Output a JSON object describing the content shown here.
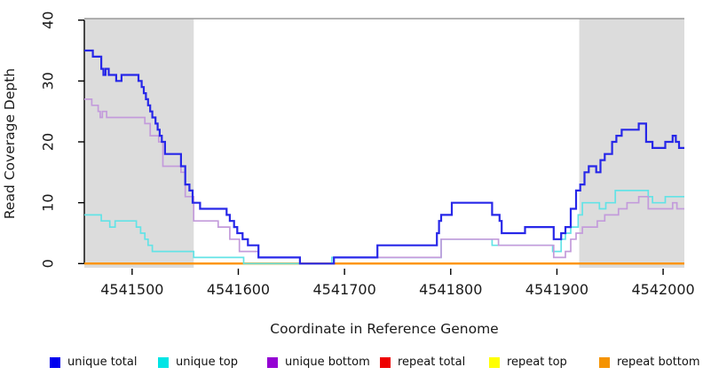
{
  "chart_data": {
    "type": "line",
    "subtype": "step-coverage-plot",
    "title": "",
    "xlabel": "Coordinate in Reference Genome",
    "ylabel": "Read Coverage Depth",
    "xlim": [
      4541455,
      4542020
    ],
    "ylim": [
      0,
      40
    ],
    "x_ticks": [
      4541500,
      4541600,
      4541700,
      4541800,
      4541900,
      4542000
    ],
    "y_ticks": [
      0,
      10,
      20,
      30,
      40
    ],
    "grid": false,
    "legend_position": "bottom",
    "shaded_regions": [
      {
        "name": "left-repeat-region",
        "x0": 4541455,
        "x1": 4541558,
        "color": "#dcdcdc"
      },
      {
        "name": "right-repeat-region",
        "x0": 4541921,
        "x1": 4542020,
        "color": "#dcdcdc"
      }
    ],
    "series": [
      {
        "name": "repeat total",
        "color": "#dd0000",
        "width": 2,
        "points": [
          [
            4541455,
            0
          ]
        ]
      },
      {
        "name": "repeat top",
        "color": "#ffeb00",
        "width": 2,
        "points": [
          [
            4541455,
            0
          ]
        ]
      },
      {
        "name": "repeat bottom",
        "color": "#ff9100",
        "width": 2,
        "points": [
          [
            4541455,
            0
          ]
        ]
      },
      {
        "name": "unique top",
        "color": "#63e3e6",
        "width": 1.7,
        "points": [
          [
            4541455,
            8
          ],
          [
            4541471,
            7
          ],
          [
            4541479,
            6
          ],
          [
            4541484,
            7
          ],
          [
            4541504,
            6
          ],
          [
            4541508,
            5
          ],
          [
            4541512,
            4
          ],
          [
            4541515,
            3
          ],
          [
            4541519,
            2
          ],
          [
            4541558,
            1
          ],
          [
            4541605,
            0
          ],
          [
            4541688,
            1
          ],
          [
            4541791,
            4
          ],
          [
            4541839,
            3
          ],
          [
            4541896,
            2
          ],
          [
            4541904,
            4
          ],
          [
            4541908,
            5
          ],
          [
            4541913,
            6
          ],
          [
            4541920,
            8
          ],
          [
            4541924,
            10
          ],
          [
            4541940,
            9
          ],
          [
            4541946,
            10
          ],
          [
            4541955,
            12
          ],
          [
            4541986,
            11
          ],
          [
            4541990,
            10
          ],
          [
            4542002,
            11
          ]
        ]
      },
      {
        "name": "unique bottom",
        "color": "#c39bdb",
        "width": 1.7,
        "points": [
          [
            4541455,
            27
          ],
          [
            4541462,
            26
          ],
          [
            4541468,
            25
          ],
          [
            4541470,
            24
          ],
          [
            4541472,
            25
          ],
          [
            4541476,
            24
          ],
          [
            4541512,
            23
          ],
          [
            4541517,
            21
          ],
          [
            4541525,
            20
          ],
          [
            4541529,
            16
          ],
          [
            4541546,
            15
          ],
          [
            4541550,
            11
          ],
          [
            4541558,
            7
          ],
          [
            4541581,
            6
          ],
          [
            4541592,
            4
          ],
          [
            4541601,
            2
          ],
          [
            4541619,
            1
          ],
          [
            4541658,
            0
          ],
          [
            4541690,
            1
          ],
          [
            4541791,
            4
          ],
          [
            4541845,
            3
          ],
          [
            4541897,
            1
          ],
          [
            4541908,
            2
          ],
          [
            4541913,
            4
          ],
          [
            4541918,
            5
          ],
          [
            4541924,
            6
          ],
          [
            4541938,
            7
          ],
          [
            4541945,
            8
          ],
          [
            4541958,
            9
          ],
          [
            4541966,
            10
          ],
          [
            4541977,
            11
          ],
          [
            4541986,
            9
          ],
          [
            4542009,
            10
          ],
          [
            4542013,
            9
          ]
        ]
      },
      {
        "name": "unique total",
        "color": "#2727e8",
        "width": 2.2,
        "points": [
          [
            4541455,
            35
          ],
          [
            4541463,
            34
          ],
          [
            4541471,
            32
          ],
          [
            4541473,
            31
          ],
          [
            4541475,
            32
          ],
          [
            4541478,
            31
          ],
          [
            4541485,
            30
          ],
          [
            4541490,
            31
          ],
          [
            4541506,
            30
          ],
          [
            4541509,
            29
          ],
          [
            4541511,
            28
          ],
          [
            4541513,
            27
          ],
          [
            4541515,
            26
          ],
          [
            4541517,
            25
          ],
          [
            4541519,
            24
          ],
          [
            4541522,
            23
          ],
          [
            4541524,
            22
          ],
          [
            4541526,
            21
          ],
          [
            4541528,
            20
          ],
          [
            4541531,
            18
          ],
          [
            4541546,
            16
          ],
          [
            4541550,
            13
          ],
          [
            4541554,
            12
          ],
          [
            4541557,
            10
          ],
          [
            4541564,
            9
          ],
          [
            4541589,
            8
          ],
          [
            4541592,
            7
          ],
          [
            4541596,
            6
          ],
          [
            4541599,
            5
          ],
          [
            4541604,
            4
          ],
          [
            4541609,
            3
          ],
          [
            4541619,
            1
          ],
          [
            4541658,
            0
          ],
          [
            4541690,
            1
          ],
          [
            4541731,
            3
          ],
          [
            4541787,
            5
          ],
          [
            4541789,
            7
          ],
          [
            4541791,
            8
          ],
          [
            4541801,
            10
          ],
          [
            4541839,
            8
          ],
          [
            4541846,
            7
          ],
          [
            4541848,
            5
          ],
          [
            4541870,
            6
          ],
          [
            4541897,
            4
          ],
          [
            4541904,
            5
          ],
          [
            4541908,
            6
          ],
          [
            4541913,
            9
          ],
          [
            4541918,
            12
          ],
          [
            4541922,
            13
          ],
          [
            4541926,
            15
          ],
          [
            4541930,
            16
          ],
          [
            4541937,
            15
          ],
          [
            4541941,
            17
          ],
          [
            4541945,
            18
          ],
          [
            4541952,
            20
          ],
          [
            4541956,
            21
          ],
          [
            4541961,
            22
          ],
          [
            4541977,
            23
          ],
          [
            4541984,
            20
          ],
          [
            4541990,
            19
          ],
          [
            4542002,
            20
          ],
          [
            4542009,
            21
          ],
          [
            4542012,
            20
          ],
          [
            4542015,
            19
          ]
        ]
      }
    ]
  },
  "legend": {
    "items": [
      {
        "label": "unique total",
        "swatch": "#0000ee"
      },
      {
        "label": "unique top",
        "swatch": "#00e5e5"
      },
      {
        "label": "unique bottom",
        "swatch": "#9400d3"
      },
      {
        "label": "repeat total",
        "swatch": "#ee0000"
      },
      {
        "label": "repeat top",
        "swatch": "#ffff00"
      },
      {
        "label": "repeat bottom",
        "swatch": "#f59300"
      }
    ]
  },
  "colors": {
    "band": "#dcdcdc",
    "top_border": "#9a9a9a",
    "axis": "#000000",
    "tick_text": "#1a1a1a"
  }
}
